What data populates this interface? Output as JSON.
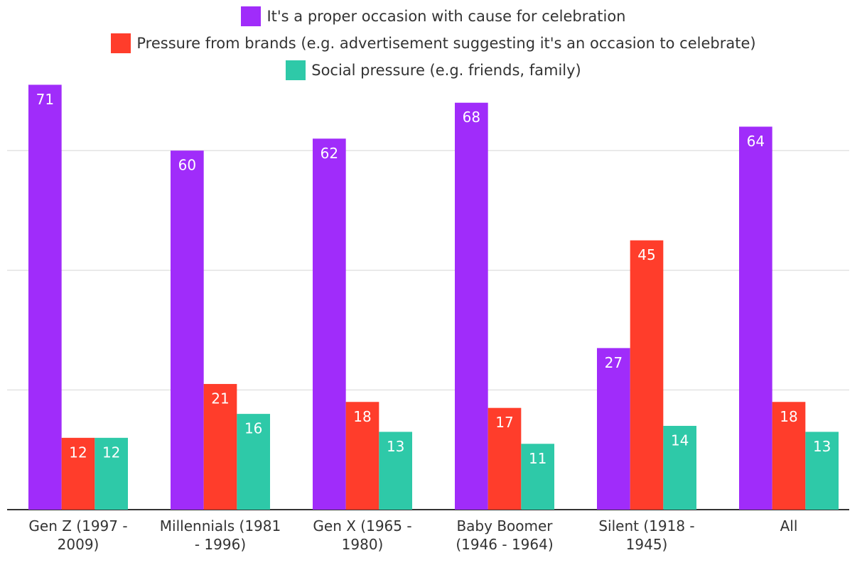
{
  "chart_data": {
    "type": "bar",
    "categories": [
      "Gen Z (1997 - 2009)",
      "Millennials (1981 - 1996)",
      "Gen X (1965 - 1980)",
      "Baby Boomer (1946 - 1964)",
      "Silent (1918 - 1945)",
      "All"
    ],
    "series": [
      {
        "name": "It's a proper occasion with cause for celebration",
        "color": "#a02cfa",
        "values": [
          71,
          60,
          62,
          68,
          27,
          64
        ]
      },
      {
        "name": "Pressure from brands (e.g. advertisement suggesting it's an occasion to celebrate)",
        "color": "#ff3d2b",
        "values": [
          12,
          21,
          18,
          17,
          45,
          18
        ]
      },
      {
        "name": "Social pressure (e.g. friends, family)",
        "color": "#2ec9a8",
        "values": [
          12,
          16,
          13,
          11,
          14,
          13
        ]
      }
    ],
    "ylim": [
      0,
      72
    ],
    "yticks": [
      0,
      20,
      40,
      60
    ],
    "grid": true
  }
}
